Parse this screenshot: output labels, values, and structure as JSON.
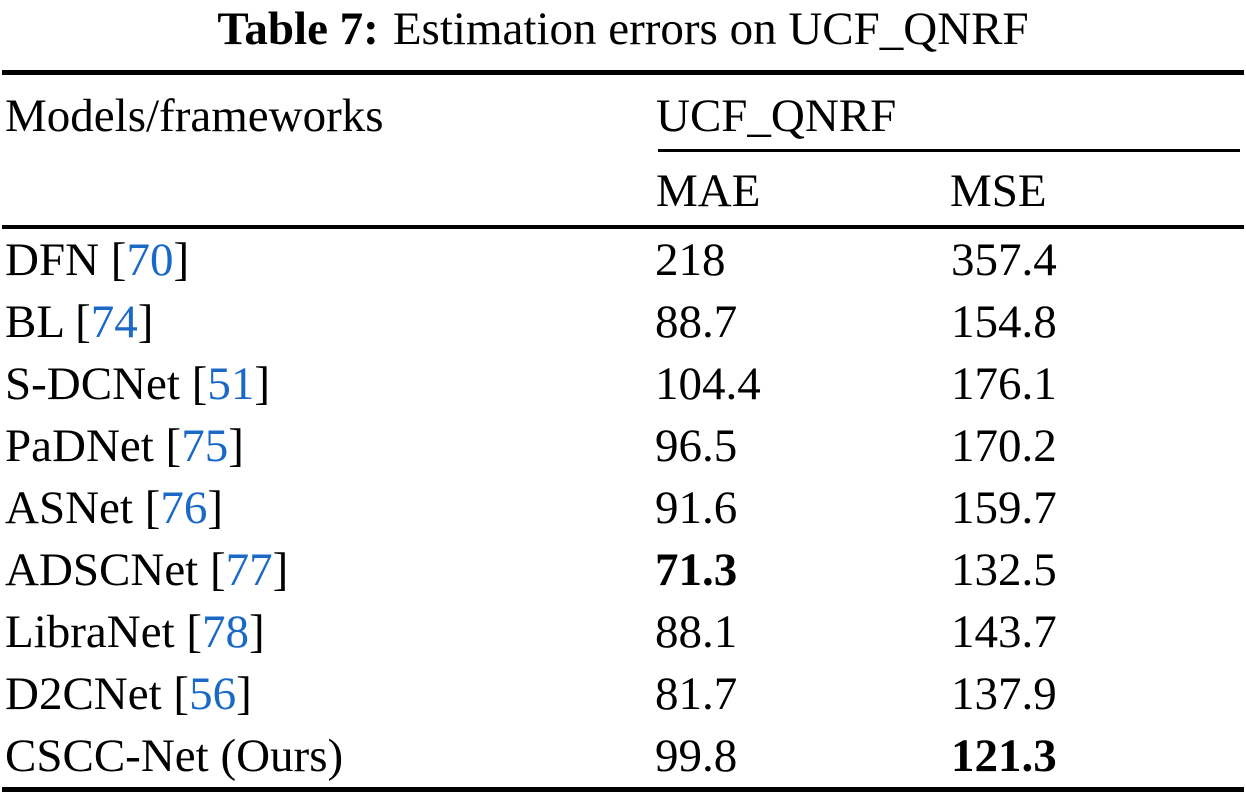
{
  "title": {
    "label": "Table 7:",
    "text": "Estimation errors on UCF_QNRF"
  },
  "header": {
    "col_model": "Models/frameworks",
    "col_group": "UCF_QNRF",
    "col_mae": "MAE",
    "col_mse": "MSE"
  },
  "colors": {
    "citation_blue": "#1b69c7",
    "text": "#000000",
    "background": "#ffffff"
  },
  "rows": [
    {
      "pre": "DFN [",
      "cite": "70",
      "post": "]",
      "mae": "218",
      "mse": "357.4"
    },
    {
      "pre": "BL [",
      "cite": "74",
      "post": "]",
      "mae": "88.7",
      "mse": "154.8"
    },
    {
      "pre": "S-DCNet [",
      "cite": "51",
      "post": "]",
      "mae": "104.4",
      "mse": "176.1"
    },
    {
      "pre": "PaDNet [",
      "cite": "75",
      "post": "]",
      "mae": "96.5",
      "mse": "170.2"
    },
    {
      "pre": "ASNet [",
      "cite": "76",
      "post": "]",
      "mae": "91.6",
      "mse": "159.7"
    },
    {
      "pre": "ADSCNet [",
      "cite": "77",
      "post": "]",
      "mae": "71.3",
      "mse": "132.5"
    },
    {
      "pre": "LibraNet [",
      "cite": "78",
      "post": "]",
      "mae": "88.1",
      "mse": "143.7"
    },
    {
      "pre": "D2CNet [",
      "cite": "56",
      "post": "]",
      "mae": "81.7",
      "mse": "137.9"
    },
    {
      "pre": "CSCC-Net (Ours)",
      "cite": "",
      "post": "",
      "mae": "99.8",
      "mse": "121.3"
    }
  ],
  "chart_data": {
    "type": "table",
    "title": "Table 7: Estimation errors on UCF_QNRF",
    "columns": [
      "Models/frameworks",
      "MAE",
      "MSE"
    ],
    "group_header": "UCF_QNRF",
    "rows": [
      [
        "DFN [70]",
        218,
        357.4
      ],
      [
        "BL [74]",
        88.7,
        154.8
      ],
      [
        "S-DCNet [51]",
        104.4,
        176.1
      ],
      [
        "PaDNet [75]",
        96.5,
        170.2
      ],
      [
        "ASNet [76]",
        91.6,
        159.7
      ],
      [
        "ADSCNet [77]",
        71.3,
        132.5
      ],
      [
        "LibraNet [78]",
        88.1,
        143.7
      ],
      [
        "D2CNet [56]",
        81.7,
        137.9
      ],
      [
        "CSCC-Net (Ours)",
        99.8,
        121.3
      ]
    ],
    "bold_values": [
      {
        "row": "ADSCNet [77]",
        "column": "MAE",
        "value": 71.3
      },
      {
        "row": "CSCC-Net (Ours)",
        "column": "MSE",
        "value": 121.3
      }
    ]
  }
}
